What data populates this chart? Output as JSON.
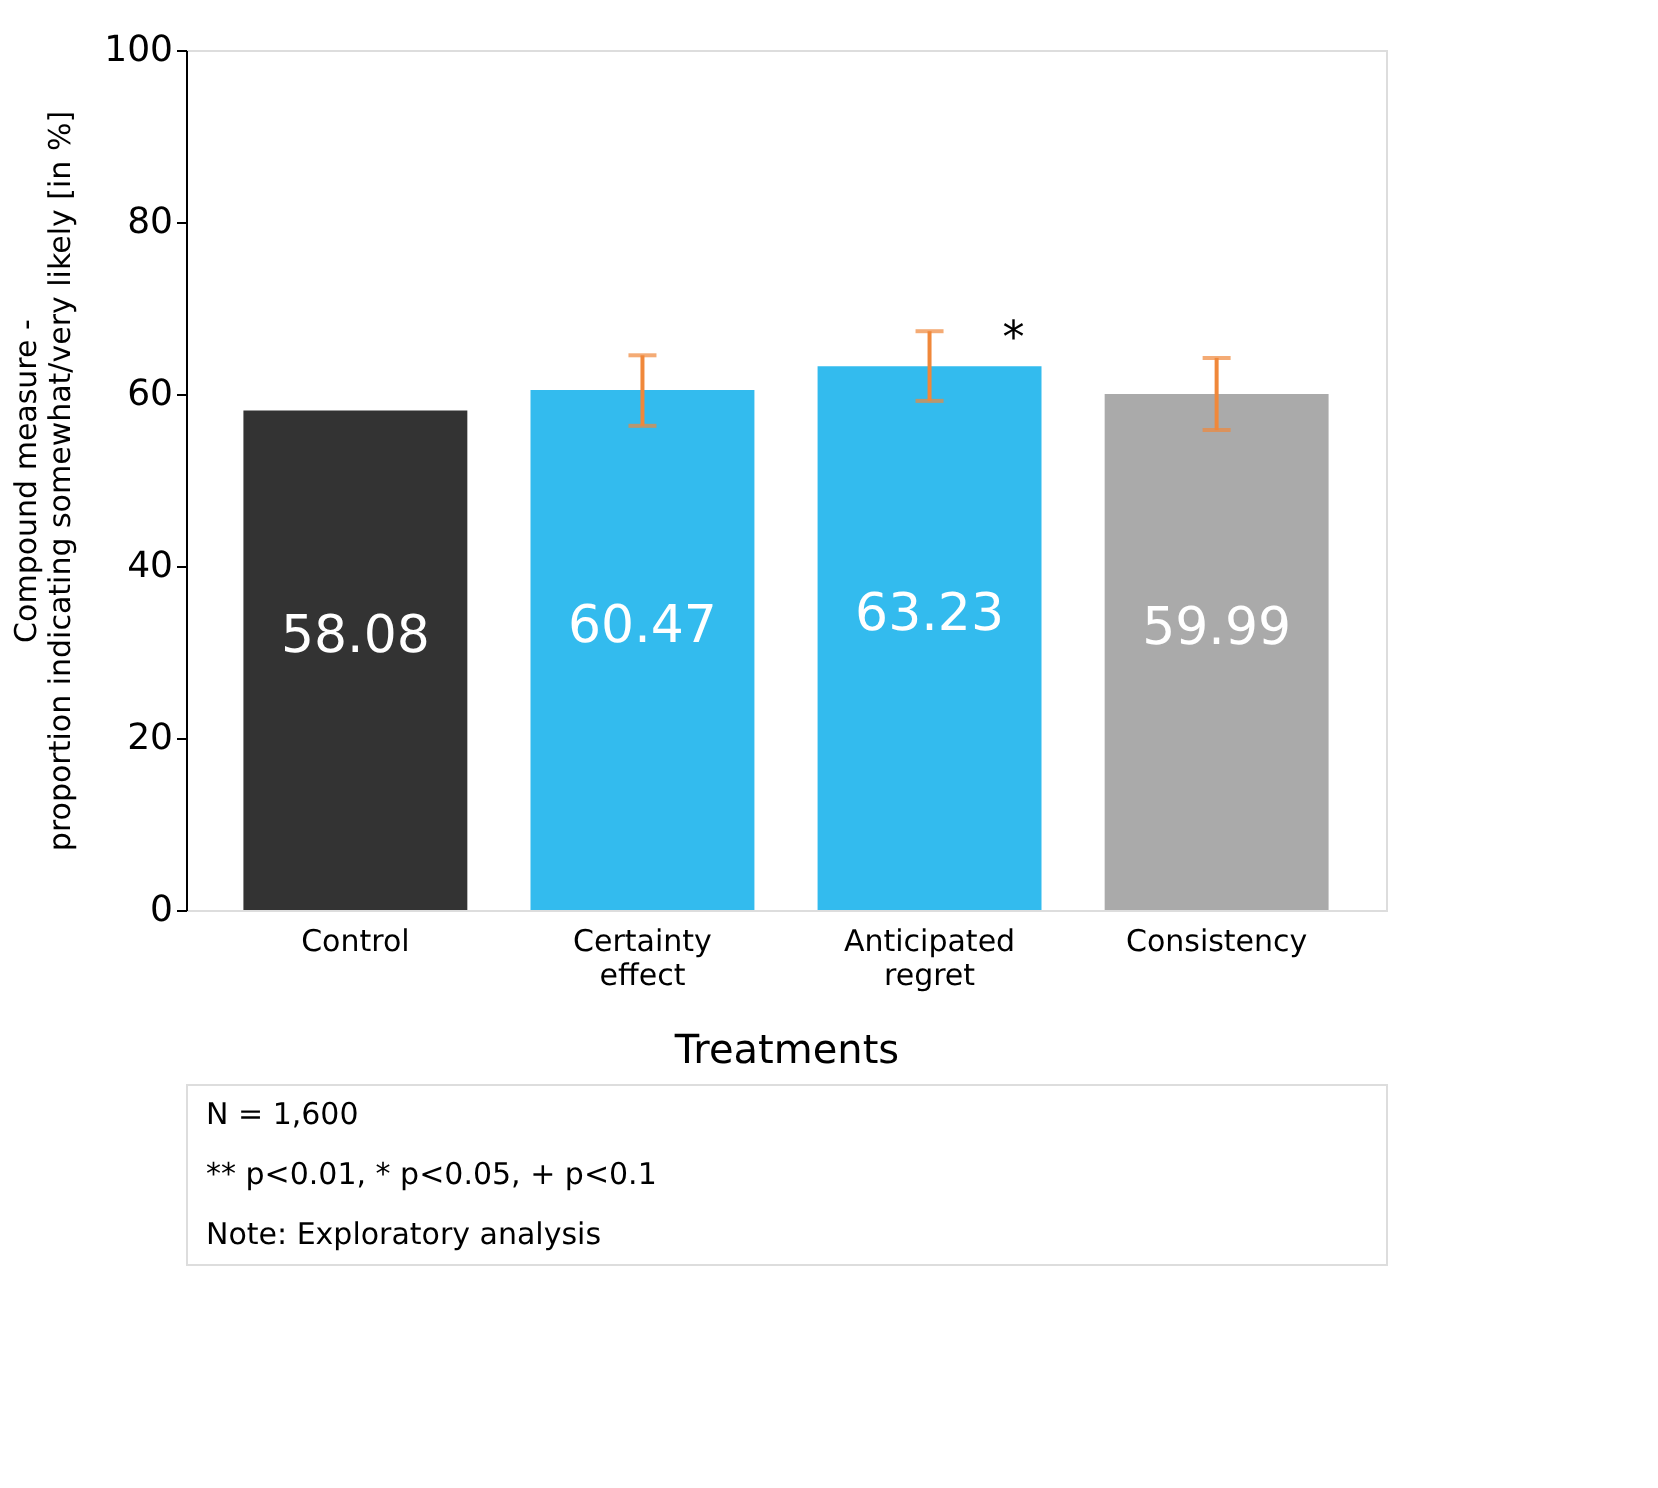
{
  "chart_data": {
    "type": "bar",
    "categories": [
      "Control",
      "Certainty effect",
      "Anticipated regret",
      "Consistency"
    ],
    "values": [
      58.08,
      60.47,
      63.23,
      59.99
    ],
    "colors": [
      "#333333",
      "#33bbee",
      "#33bbee",
      "#aaaaaa"
    ],
    "errors": [
      null,
      [
        56.3,
        64.5
      ],
      [
        59.2,
        67.3
      ],
      [
        55.8,
        64.2
      ]
    ],
    "data_labels": true,
    "xlabel": "Treatments",
    "ylabel": "Compound measure -\nproportion indicating somewhat/very likely [in %]",
    "ylim": [
      0,
      100
    ],
    "yticks": [
      0,
      20,
      40,
      60,
      80,
      100
    ],
    "grid": false,
    "annotations": [
      {
        "text": "*",
        "x": "Anticipated regret",
        "y": 63.23
      },
      "N = 1,600",
      "** p<0.01, * p<0.05, + p<0.1",
      "Note: Exploratory analysis"
    ]
  }
}
